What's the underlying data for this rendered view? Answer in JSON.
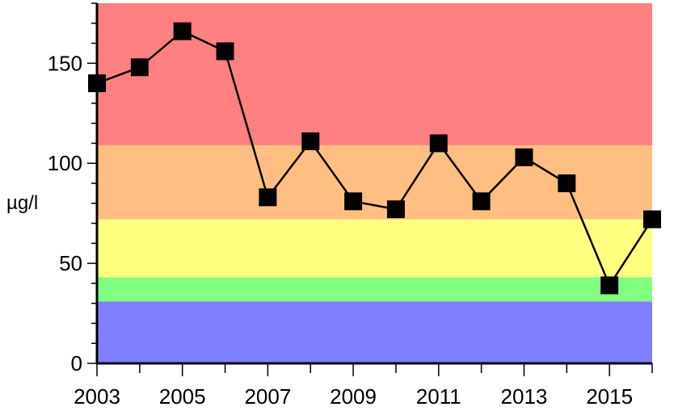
{
  "chart_data": {
    "type": "line",
    "title": "",
    "xlabel": "",
    "ylabel": "µg/l",
    "xlim": [
      2003,
      2016
    ],
    "ylim": [
      0,
      180
    ],
    "x_ticks_major": [
      "2003",
      "2005",
      "2007",
      "2009",
      "2011",
      "2013",
      "2015"
    ],
    "y_ticks_major": [
      "0",
      "50",
      "100",
      "150"
    ],
    "grid": false,
    "legend": "none",
    "background_bands": [
      {
        "from": 0,
        "to": 31,
        "color": "#8080ff"
      },
      {
        "from": 31,
        "to": 43,
        "color": "#80ff80"
      },
      {
        "from": 43,
        "to": 72,
        "color": "#ffff80"
      },
      {
        "from": 72,
        "to": 109,
        "color": "#ffbf80"
      },
      {
        "from": 109,
        "to": 180,
        "color": "#ff8080"
      }
    ],
    "series": [
      {
        "x": [
          2003,
          2004,
          2005,
          2006,
          2007,
          2008,
          2009,
          2010,
          2011,
          2012,
          2013,
          2014,
          2015,
          2016
        ],
        "values": [
          140,
          148,
          166,
          156,
          83,
          111,
          81,
          77,
          110,
          81,
          103,
          90,
          39,
          72
        ],
        "color": "#000000",
        "marker": "square"
      }
    ]
  }
}
